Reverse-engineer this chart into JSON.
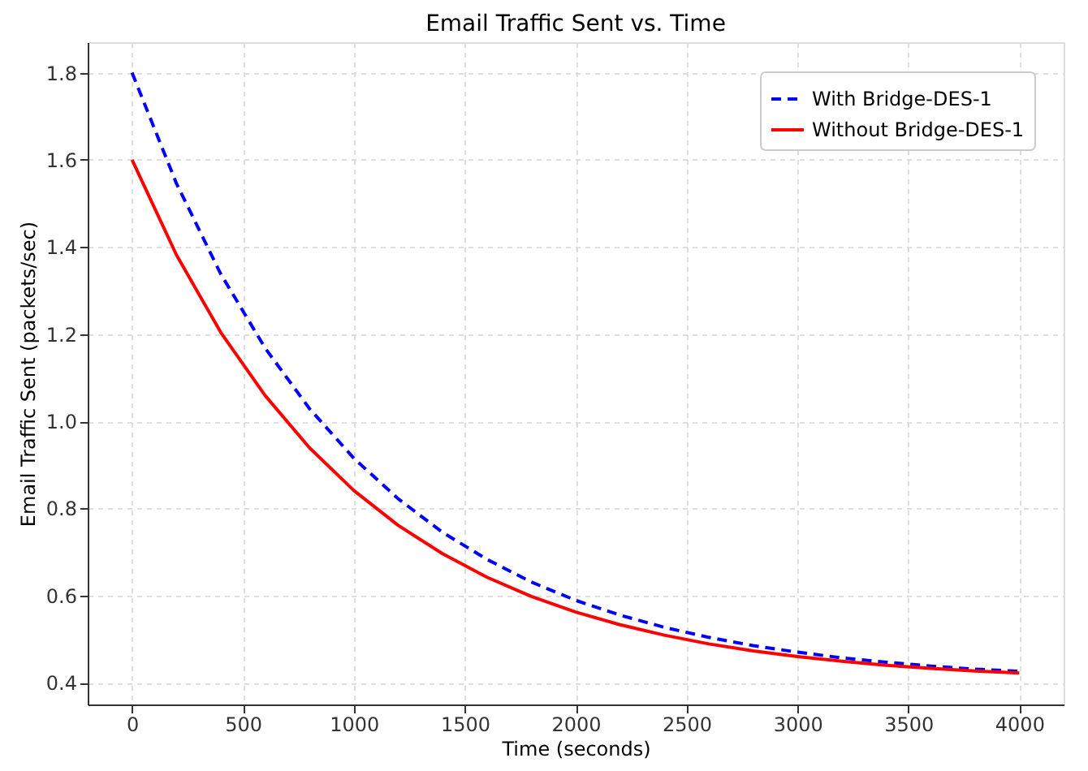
{
  "chart_data": {
    "type": "line",
    "title": "Email Traffic Sent vs. Time",
    "xlabel": "Time (seconds)",
    "ylabel": "Email Traffic Sent (packets/sec)",
    "x": [
      0,
      200,
      400,
      600,
      800,
      1000,
      1200,
      1400,
      1600,
      1800,
      2000,
      2200,
      2400,
      2600,
      2800,
      3000,
      3200,
      3400,
      3600,
      3800,
      4000
    ],
    "series": [
      {
        "name": "With Bridge-DES-1",
        "color": "#0000ff",
        "line_style": "dashed",
        "values": [
          1.8,
          1.546,
          1.338,
          1.168,
          1.029,
          0.915,
          0.822,
          0.745,
          0.683,
          0.631,
          0.589,
          0.555,
          0.527,
          0.504,
          0.485,
          0.47,
          0.457,
          0.447,
          0.438,
          0.431,
          0.426
        ]
      },
      {
        "name": "Without Bridge-DES-1",
        "color": "#ff0000",
        "line_style": "solid",
        "values": [
          1.6,
          1.382,
          1.204,
          1.059,
          0.939,
          0.841,
          0.761,
          0.696,
          0.642,
          0.598,
          0.562,
          0.533,
          0.509,
          0.489,
          0.473,
          0.46,
          0.449,
          0.44,
          0.433,
          0.427,
          0.422
        ]
      }
    ],
    "xlim": [
      -200,
      4200
    ],
    "xticks": [
      0,
      500,
      1000,
      1500,
      2000,
      2500,
      3000,
      3500,
      4000
    ],
    "ylim": [
      0.35,
      1.87
    ],
    "yticks": [
      0.4,
      0.6,
      0.8,
      {
        "value": 1,
        "label": "1.0"
      },
      1.2,
      1.4,
      1.6,
      1.8
    ],
    "grid": true,
    "legend": "top right",
    "marker": "none"
  }
}
